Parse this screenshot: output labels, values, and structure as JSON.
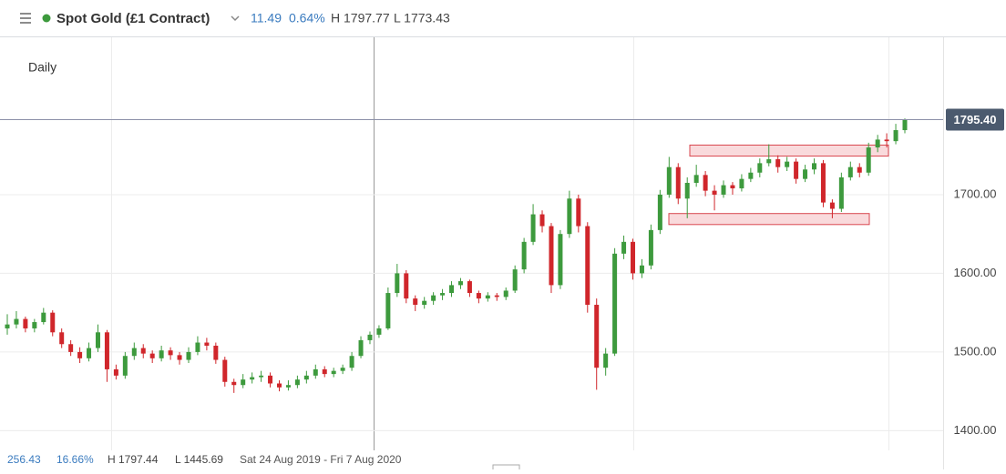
{
  "header": {
    "title": "Spot Gold (£1 Contract)",
    "change": "11.49",
    "change_pct": "0.64%",
    "high": "H 1797.77",
    "low": "L 1773.43"
  },
  "footer": {
    "range_change": "256.43",
    "range_pct": "16.66%",
    "range_high": "H 1797.44",
    "range_low": "L 1445.69",
    "period": "Sat 24 Aug 2019 - Fri 7 Aug 2020"
  },
  "chart_data": {
    "type": "candlestick",
    "interval": "Daily",
    "up_color": "#3d9a3d",
    "down_color": "#d0262b",
    "ylim": [
      1375,
      1900
    ],
    "yticks": [
      {
        "value": 1400,
        "label": "1400.00"
      },
      {
        "value": 1500,
        "label": "1500.00"
      },
      {
        "value": 1600,
        "label": "1600.00"
      },
      {
        "value": 1700,
        "label": "1700.00"
      }
    ],
    "grid": true,
    "last_price": {
      "value": 1795.4,
      "label": "1795.40"
    },
    "zones": [
      {
        "low": 1749,
        "high": 1763
      },
      {
        "low": 1662,
        "high": 1676
      }
    ],
    "ohlc": [
      [
        1530,
        1548,
        1522,
        1535
      ],
      [
        1535,
        1552,
        1530,
        1542
      ],
      [
        1542,
        1545,
        1525,
        1530
      ],
      [
        1530,
        1542,
        1525,
        1538
      ],
      [
        1538,
        1556,
        1535,
        1550
      ],
      [
        1550,
        1553,
        1520,
        1525
      ],
      [
        1525,
        1530,
        1505,
        1510
      ],
      [
        1510,
        1515,
        1495,
        1500
      ],
      [
        1500,
        1506,
        1486,
        1492
      ],
      [
        1492,
        1512,
        1488,
        1505
      ],
      [
        1505,
        1535,
        1500,
        1525
      ],
      [
        1525,
        1528,
        1462,
        1478
      ],
      [
        1478,
        1484,
        1465,
        1470
      ],
      [
        1470,
        1500,
        1466,
        1495
      ],
      [
        1495,
        1512,
        1490,
        1505
      ],
      [
        1505,
        1510,
        1492,
        1498
      ],
      [
        1498,
        1502,
        1486,
        1492
      ],
      [
        1492,
        1508,
        1488,
        1502
      ],
      [
        1502,
        1506,
        1490,
        1496
      ],
      [
        1496,
        1500,
        1484,
        1490
      ],
      [
        1490,
        1506,
        1486,
        1500
      ],
      [
        1500,
        1520,
        1496,
        1512
      ],
      [
        1512,
        1518,
        1502,
        1508
      ],
      [
        1508,
        1512,
        1485,
        1490
      ],
      [
        1490,
        1494,
        1456,
        1462
      ],
      [
        1462,
        1466,
        1448,
        1458
      ],
      [
        1458,
        1472,
        1454,
        1465
      ],
      [
        1465,
        1474,
        1460,
        1468
      ],
      [
        1468,
        1476,
        1462,
        1470
      ],
      [
        1470,
        1474,
        1455,
        1460
      ],
      [
        1460,
        1464,
        1450,
        1455
      ],
      [
        1455,
        1464,
        1451,
        1458
      ],
      [
        1458,
        1470,
        1454,
        1465
      ],
      [
        1465,
        1476,
        1460,
        1470
      ],
      [
        1470,
        1484,
        1466,
        1478
      ],
      [
        1478,
        1482,
        1468,
        1472
      ],
      [
        1472,
        1480,
        1468,
        1476
      ],
      [
        1476,
        1484,
        1472,
        1480
      ],
      [
        1480,
        1500,
        1476,
        1495
      ],
      [
        1495,
        1520,
        1492,
        1515
      ],
      [
        1515,
        1526,
        1510,
        1522
      ],
      [
        1522,
        1534,
        1518,
        1530
      ],
      [
        1530,
        1582,
        1528,
        1575
      ],
      [
        1575,
        1612,
        1570,
        1600
      ],
      [
        1600,
        1604,
        1562,
        1568
      ],
      [
        1568,
        1572,
        1552,
        1560
      ],
      [
        1560,
        1570,
        1555,
        1565
      ],
      [
        1565,
        1576,
        1560,
        1572
      ],
      [
        1572,
        1580,
        1566,
        1575
      ],
      [
        1575,
        1590,
        1570,
        1585
      ],
      [
        1585,
        1594,
        1580,
        1590
      ],
      [
        1590,
        1592,
        1570,
        1575
      ],
      [
        1575,
        1578,
        1562,
        1568
      ],
      [
        1568,
        1576,
        1564,
        1572
      ],
      [
        1572,
        1575,
        1565,
        1570
      ],
      [
        1570,
        1582,
        1566,
        1578
      ],
      [
        1578,
        1610,
        1575,
        1605
      ],
      [
        1605,
        1645,
        1600,
        1640
      ],
      [
        1640,
        1688,
        1636,
        1675
      ],
      [
        1675,
        1680,
        1652,
        1660
      ],
      [
        1660,
        1664,
        1575,
        1585
      ],
      [
        1585,
        1655,
        1580,
        1650
      ],
      [
        1650,
        1705,
        1645,
        1695
      ],
      [
        1695,
        1700,
        1652,
        1660
      ],
      [
        1660,
        1665,
        1550,
        1560
      ],
      [
        1560,
        1568,
        1452,
        1480
      ],
      [
        1480,
        1505,
        1470,
        1498
      ],
      [
        1498,
        1632,
        1495,
        1625
      ],
      [
        1625,
        1648,
        1618,
        1640
      ],
      [
        1640,
        1644,
        1592,
        1600
      ],
      [
        1600,
        1618,
        1594,
        1610
      ],
      [
        1610,
        1662,
        1605,
        1655
      ],
      [
        1655,
        1706,
        1650,
        1700
      ],
      [
        1700,
        1748,
        1696,
        1735
      ],
      [
        1735,
        1740,
        1688,
        1695
      ],
      [
        1695,
        1722,
        1670,
        1715
      ],
      [
        1715,
        1738,
        1710,
        1725
      ],
      [
        1725,
        1730,
        1698,
        1705
      ],
      [
        1705,
        1712,
        1680,
        1700
      ],
      [
        1700,
        1718,
        1696,
        1712
      ],
      [
        1712,
        1716,
        1700,
        1708
      ],
      [
        1708,
        1726,
        1704,
        1720
      ],
      [
        1720,
        1734,
        1716,
        1728
      ],
      [
        1728,
        1746,
        1722,
        1740
      ],
      [
        1740,
        1764,
        1736,
        1745
      ],
      [
        1745,
        1750,
        1728,
        1735
      ],
      [
        1735,
        1748,
        1730,
        1742
      ],
      [
        1742,
        1746,
        1714,
        1720
      ],
      [
        1720,
        1738,
        1716,
        1732
      ],
      [
        1732,
        1746,
        1726,
        1740
      ],
      [
        1740,
        1744,
        1684,
        1690
      ],
      [
        1690,
        1694,
        1670,
        1682
      ],
      [
        1682,
        1728,
        1678,
        1722
      ],
      [
        1722,
        1742,
        1718,
        1735
      ],
      [
        1735,
        1740,
        1722,
        1728
      ],
      [
        1728,
        1766,
        1724,
        1760
      ],
      [
        1760,
        1776,
        1754,
        1770
      ],
      [
        1770,
        1778,
        1760,
        1768
      ],
      [
        1768,
        1790,
        1764,
        1782
      ],
      [
        1782,
        1797,
        1778,
        1795.4
      ]
    ]
  }
}
